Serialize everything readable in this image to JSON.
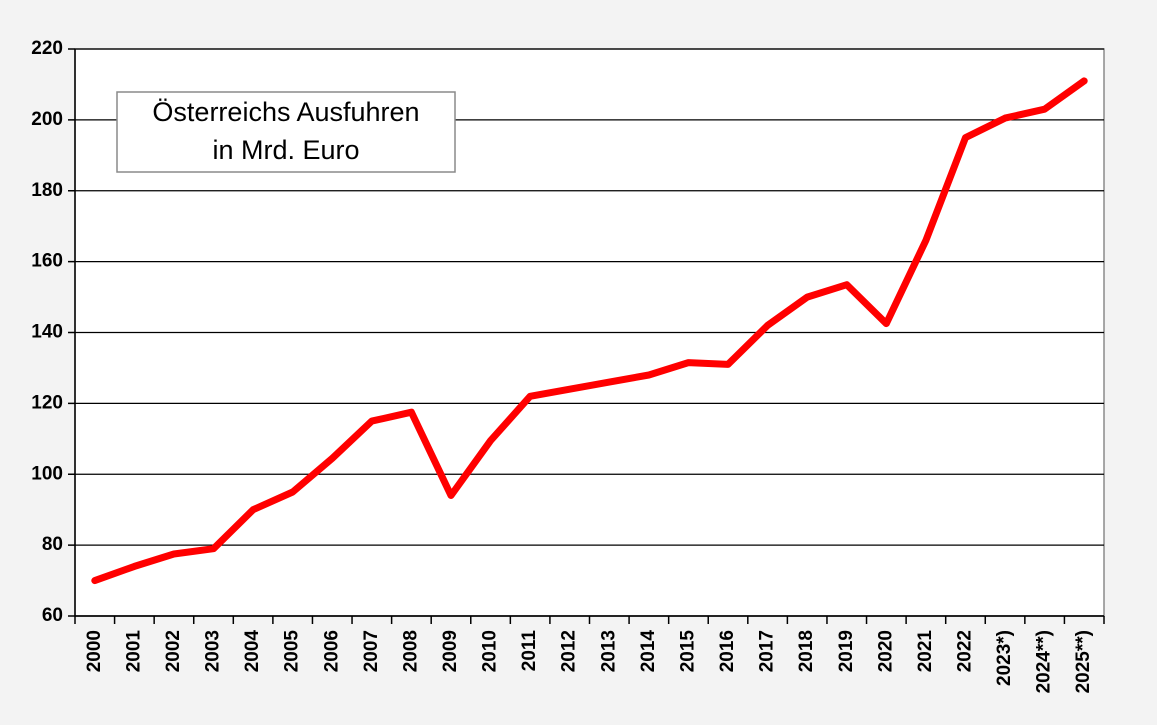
{
  "chart_data": {
    "type": "line",
    "title": [
      "Österreichs Ausfuhren",
      "in Mrd. Euro"
    ],
    "categories": [
      "2000",
      "2001",
      "2002",
      "2003",
      "2004",
      "2005",
      "2006",
      "2007",
      "2008",
      "2009",
      "2010",
      "2011",
      "2012",
      "2013",
      "2014",
      "2015",
      "2016",
      "2017",
      "2018",
      "2019",
      "2020",
      "2021",
      "2022",
      "2023*)",
      "2024**)",
      "2025**)"
    ],
    "values": [
      70,
      74,
      77.5,
      79,
      90,
      95,
      104.5,
      115,
      117.5,
      94,
      109.5,
      122,
      124,
      126,
      128,
      131.5,
      131,
      142,
      150,
      153.5,
      142.5,
      166,
      195,
      200.5,
      203,
      211
    ],
    "color": "#ff0000",
    "ylim": [
      60,
      220
    ],
    "yticks": [
      60,
      80,
      100,
      120,
      140,
      160,
      180,
      200,
      220
    ],
    "grid": true
  }
}
